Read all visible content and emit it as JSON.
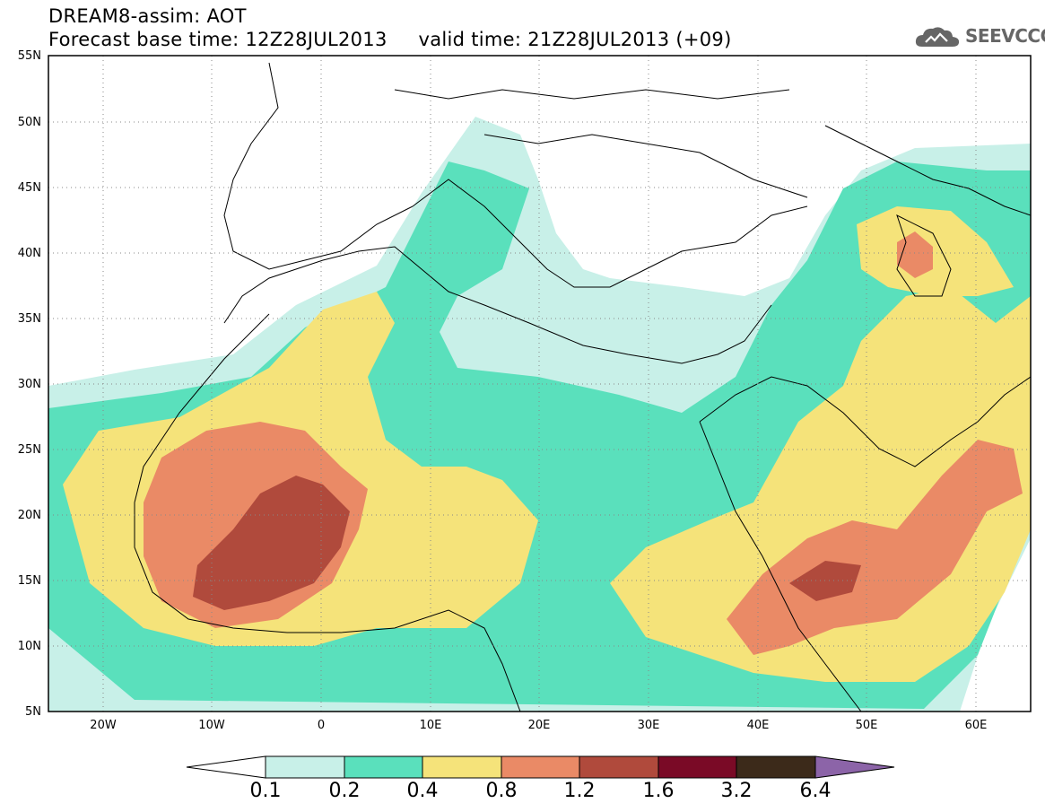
{
  "header": {
    "title_line1": "DREAM8-assim: AOT",
    "title_line2": "Forecast base time: 12Z28JUL2013     valid time: 21Z28JUL2013 (+09)",
    "logo_text": "SEEVCCC"
  },
  "map": {
    "lon_range": [
      -25,
      65
    ],
    "lat_range": [
      5,
      55
    ],
    "lat_labels": [
      "55N",
      "50N",
      "45N",
      "40N",
      "35N",
      "30N",
      "25N",
      "20N",
      "15N",
      "10N",
      "5N"
    ],
    "lon_labels": [
      "20W",
      "10W",
      "0",
      "10E",
      "20E",
      "30E",
      "40E",
      "50E",
      "60E"
    ],
    "grid": "dotted"
  },
  "colorbar": {
    "labels": [
      "0.1",
      "0.2",
      "0.4",
      "0.8",
      "1.2",
      "1.6",
      "3.2",
      "6.4"
    ],
    "colors": [
      "#ffffff",
      "#c8f0e8",
      "#5ae0bc",
      "#f5e37a",
      "#ea8a66",
      "#b04a3c",
      "#7a0a26",
      "#3c2a1a",
      "#8c64a8"
    ]
  },
  "chart_data": {
    "type": "heatmap",
    "title": "DREAM8-assim: AOT",
    "variable": "AOT",
    "xlim": [
      -25,
      65
    ],
    "ylim": [
      5,
      55
    ],
    "levels": [
      0.1,
      0.2,
      0.4,
      0.8,
      1.2,
      1.6,
      3.2,
      6.4
    ]
  }
}
